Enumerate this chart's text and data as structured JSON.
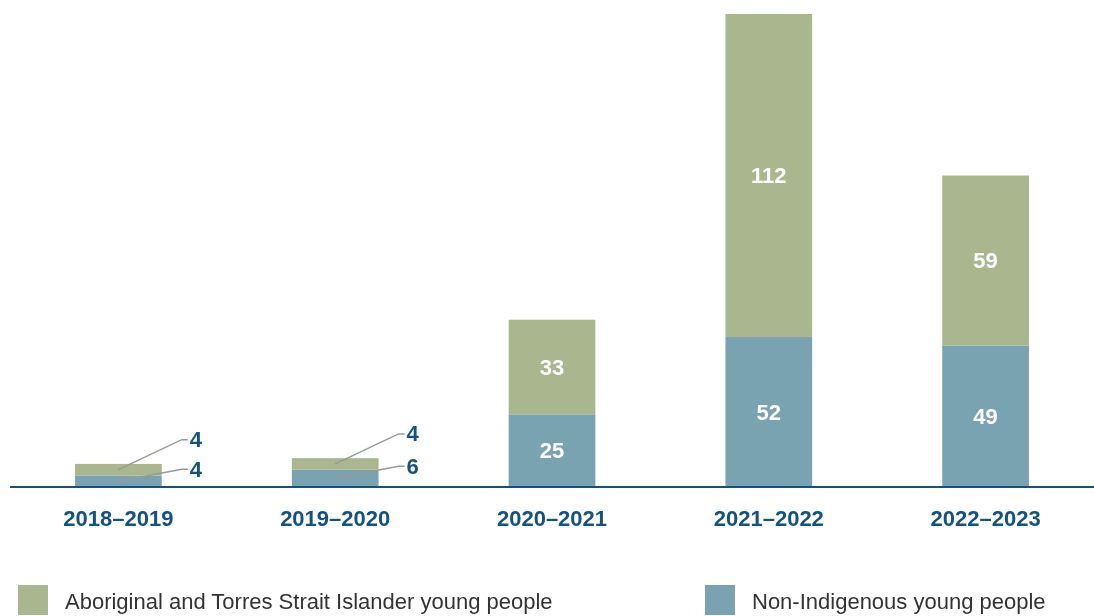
{
  "chart_data": {
    "type": "bar",
    "stacked": true,
    "data_labels": true,
    "legend": "bottom",
    "categories": [
      "2018–2019",
      "2019–2020",
      "2020–2021",
      "2021–2022",
      "2022–2023"
    ],
    "series": [
      {
        "name": "Non-Indigenous young people",
        "color": "#7aa3b1",
        "values": [
          4,
          6,
          25,
          52,
          49
        ]
      },
      {
        "name": "Aboriginal and Torres Strait Islander young people",
        "color": "#a9b68e",
        "values": [
          4,
          4,
          33,
          112,
          59
        ]
      }
    ]
  }
}
